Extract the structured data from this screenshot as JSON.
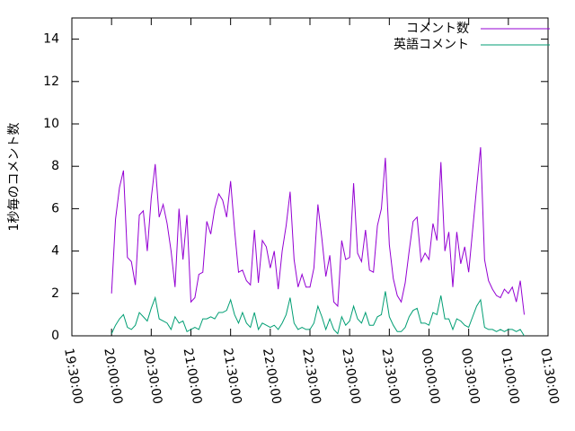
{
  "chart_data": {
    "type": "line",
    "ylabel": "1秒毎のコメント数",
    "x": [
      20,
      20.05,
      20.1,
      20.15,
      20.2,
      20.25,
      20.3,
      20.35,
      20.4,
      20.45,
      20.5,
      20.55,
      20.6,
      20.65,
      20.7,
      20.75,
      20.8,
      20.85,
      20.9,
      20.95,
      21,
      21.05,
      21.1,
      21.15,
      21.2,
      21.25,
      21.3,
      21.35,
      21.4,
      21.45,
      21.5,
      21.55,
      21.6,
      21.65,
      21.7,
      21.75,
      21.8,
      21.85,
      21.9,
      21.95,
      22,
      22.05,
      22.1,
      22.15,
      22.2,
      22.25,
      22.3,
      22.35,
      22.4,
      22.45,
      22.5,
      22.55,
      22.6,
      22.65,
      22.7,
      22.75,
      22.8,
      22.85,
      22.9,
      22.95,
      23,
      23.05,
      23.1,
      23.15,
      23.2,
      23.25,
      23.3,
      23.35,
      23.4,
      23.45,
      23.5,
      23.55,
      23.6,
      23.65,
      23.7,
      23.75,
      23.8,
      23.85,
      23.9,
      23.95,
      24,
      24.05,
      24.1,
      24.15,
      24.2,
      24.25,
      24.3,
      24.35,
      24.4,
      24.45,
      24.5,
      24.55,
      24.6,
      24.65,
      24.7,
      24.75,
      24.8,
      24.85,
      24.9,
      24.95,
      25,
      25.05,
      25.1,
      25.15,
      25.2
    ],
    "series": [
      {
        "name": "コメント数",
        "color": "#9400d3",
        "values": [
          2.0,
          5.5,
          7.0,
          7.8,
          3.7,
          3.5,
          2.4,
          5.7,
          5.9,
          4.0,
          6.5,
          8.1,
          5.6,
          6.2,
          5.3,
          4.0,
          2.3,
          6.0,
          3.6,
          5.7,
          1.6,
          1.8,
          2.9,
          3.0,
          5.4,
          4.8,
          6.0,
          6.7,
          6.4,
          5.6,
          7.3,
          5.0,
          3.0,
          3.1,
          2.6,
          2.4,
          5.0,
          2.5,
          4.5,
          4.2,
          3.2,
          4.0,
          2.2,
          4.0,
          5.2,
          6.8,
          3.6,
          2.3,
          2.9,
          2.3,
          2.3,
          3.2,
          6.2,
          4.6,
          2.8,
          3.8,
          1.6,
          1.4,
          4.5,
          3.6,
          3.7,
          7.2,
          3.9,
          3.5,
          5.0,
          3.1,
          3.0,
          5.2,
          6.0,
          8.4,
          4.3,
          2.7,
          1.9,
          1.6,
          2.5,
          4.0,
          5.4,
          5.6,
          3.5,
          3.9,
          3.6,
          5.3,
          4.5,
          8.2,
          4.0,
          4.9,
          2.3,
          4.9,
          3.4,
          4.2,
          3.0,
          5.0,
          7.0,
          8.9,
          3.6,
          2.6,
          2.2,
          1.9,
          1.8,
          2.2,
          2.0,
          2.3,
          1.6,
          2.6,
          1.0
        ]
      },
      {
        "name": "英語コメント",
        "color": "#009e73",
        "values": [
          0.1,
          0.5,
          0.8,
          1.0,
          0.4,
          0.3,
          0.5,
          1.1,
          0.9,
          0.7,
          1.3,
          1.8,
          0.8,
          0.7,
          0.6,
          0.3,
          0.9,
          0.6,
          0.7,
          0.2,
          0.3,
          0.4,
          0.3,
          0.8,
          0.8,
          0.9,
          0.8,
          1.1,
          1.1,
          1.2,
          1.7,
          1.0,
          0.6,
          1.1,
          0.6,
          0.4,
          1.1,
          0.3,
          0.6,
          0.5,
          0.4,
          0.5,
          0.3,
          0.6,
          1.0,
          1.8,
          0.6,
          0.3,
          0.4,
          0.3,
          0.3,
          0.6,
          1.4,
          0.9,
          0.3,
          0.8,
          0.3,
          0.1,
          0.9,
          0.5,
          0.7,
          1.4,
          0.8,
          0.6,
          1.1,
          0.5,
          0.5,
          0.9,
          1.0,
          2.1,
          0.9,
          0.5,
          0.2,
          0.2,
          0.4,
          0.9,
          1.2,
          1.3,
          0.6,
          0.6,
          0.5,
          1.1,
          1.0,
          1.9,
          0.8,
          0.8,
          0.3,
          0.8,
          0.7,
          0.5,
          0.4,
          0.9,
          1.4,
          1.7,
          0.4,
          0.3,
          0.3,
          0.2,
          0.3,
          0.2,
          0.3,
          0.3,
          0.2,
          0.3,
          0.0
        ]
      }
    ],
    "xlim": [
      19.5,
      25.5
    ],
    "xticks": [
      {
        "value": 19.5,
        "label": "19:30:00"
      },
      {
        "value": 20,
        "label": "20:00:00"
      },
      {
        "value": 20.5,
        "label": "20:30:00"
      },
      {
        "value": 21,
        "label": "21:00:00"
      },
      {
        "value": 21.5,
        "label": "21:30:00"
      },
      {
        "value": 22,
        "label": "22:00:00"
      },
      {
        "value": 22.5,
        "label": "22:30:00"
      },
      {
        "value": 23,
        "label": "23:00:00"
      },
      {
        "value": 23.5,
        "label": "23:30:00"
      },
      {
        "value": 24,
        "label": "00:00:00"
      },
      {
        "value": 24.5,
        "label": "00:30:00"
      },
      {
        "value": 25,
        "label": "01:00:00"
      },
      {
        "value": 25.5,
        "label": "01:30:00"
      }
    ],
    "ylim": [
      0,
      15
    ],
    "yticks": [
      0,
      2,
      4,
      6,
      8,
      10,
      12,
      14
    ],
    "legend": "top-right"
  }
}
